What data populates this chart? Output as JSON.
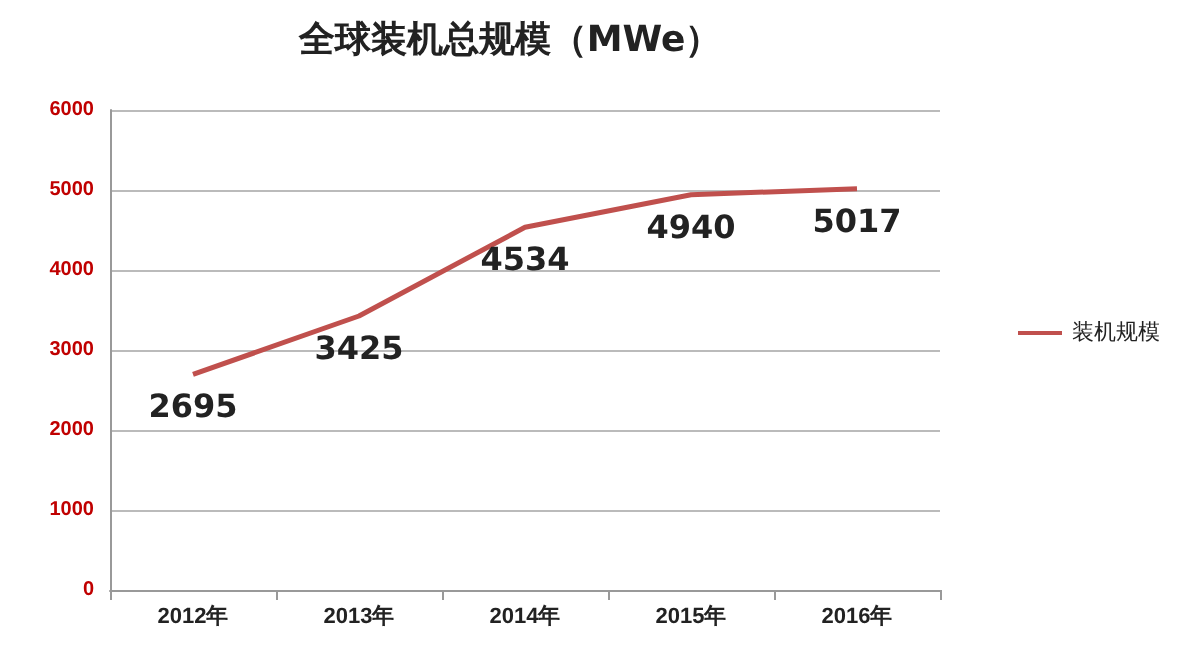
{
  "chart_data": {
    "type": "line",
    "title": "全球装机总规模（MWe）",
    "categories": [
      "2012年",
      "2013年",
      "2014年",
      "2015年",
      "2016年"
    ],
    "series": [
      {
        "name": "装机规模",
        "color": "#c0504d",
        "values": [
          2695,
          3425,
          4534,
          4940,
          5017
        ]
      }
    ],
    "ylim": [
      0,
      6000
    ],
    "yticks": [
      0,
      1000,
      2000,
      3000,
      4000,
      5000,
      6000
    ],
    "grid": "y",
    "legend": "right",
    "marker": "none",
    "data_labels": true
  }
}
